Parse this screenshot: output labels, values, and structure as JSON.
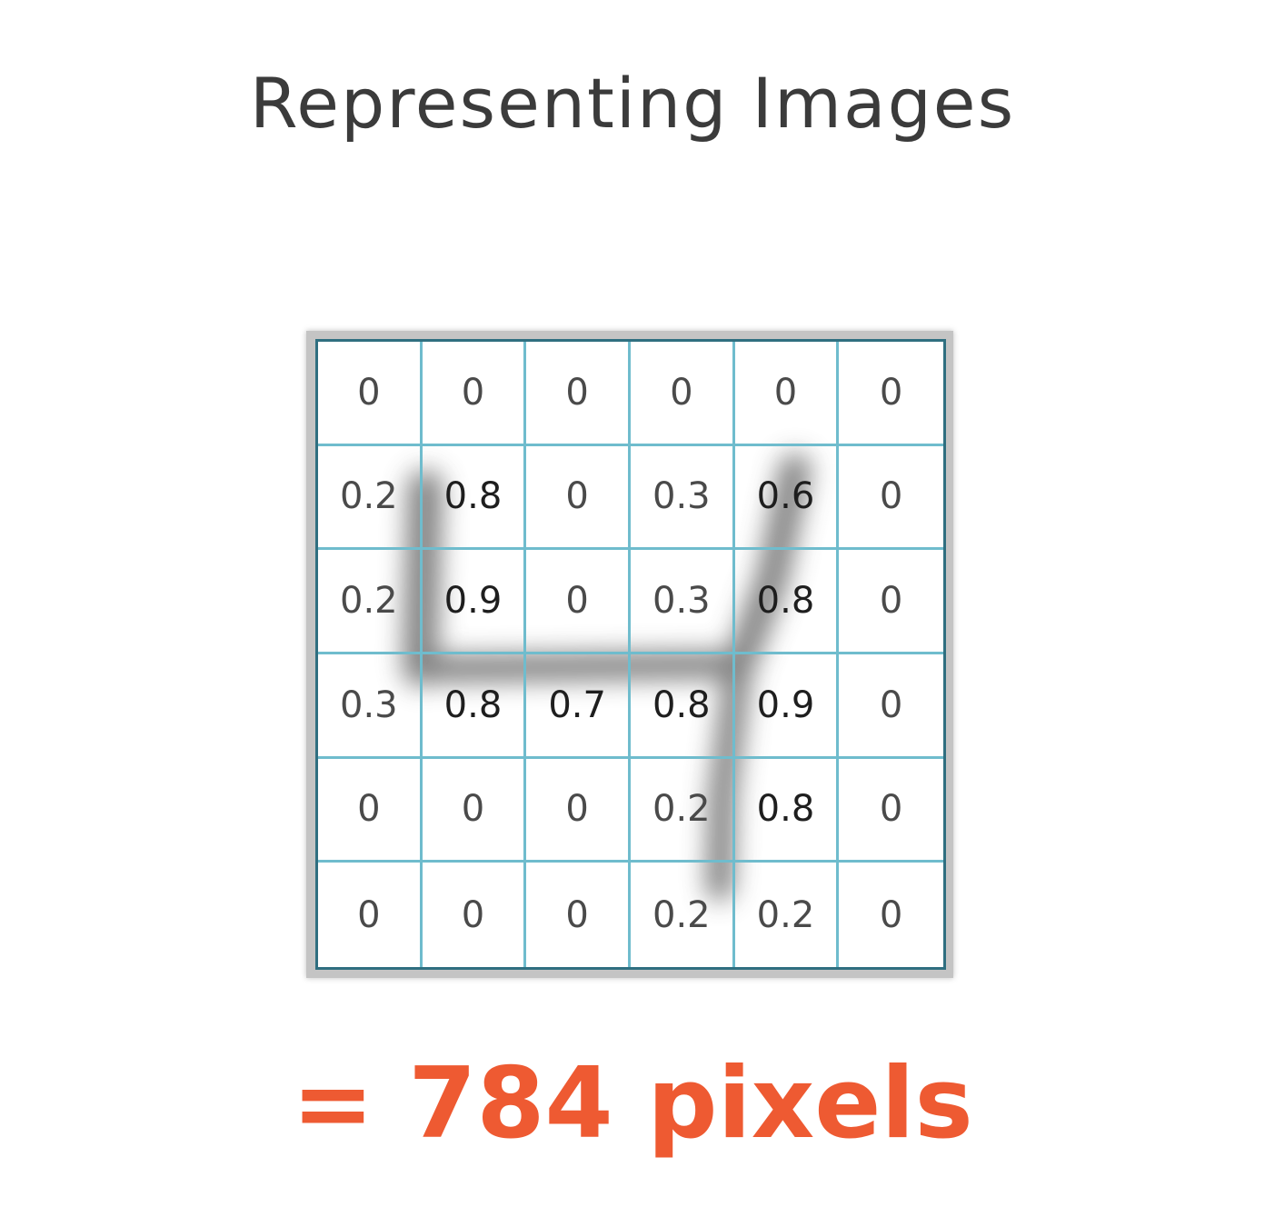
{
  "title": "Representing Images",
  "grid": {
    "rows": [
      [
        "0",
        "0",
        "0",
        "0",
        "0",
        "0"
      ],
      [
        "0.2",
        "0.8",
        "0",
        "0.3",
        "0.6",
        "0"
      ],
      [
        "0.2",
        "0.9",
        "0",
        "0.3",
        "0.8",
        "0"
      ],
      [
        "0.3",
        "0.8",
        "0.7",
        "0.8",
        "0.9",
        "0"
      ],
      [
        "0",
        "0",
        "0",
        "0.2",
        "0.8",
        "0"
      ],
      [
        "0",
        "0",
        "0",
        "0.2",
        "0.2",
        "0"
      ]
    ]
  },
  "result": "= 784 pixels",
  "colors": {
    "grid_line": "#6fbccd",
    "grid_border": "#2f6f80",
    "result_text": "#ee5a32",
    "title_text": "#3b3b3b"
  }
}
